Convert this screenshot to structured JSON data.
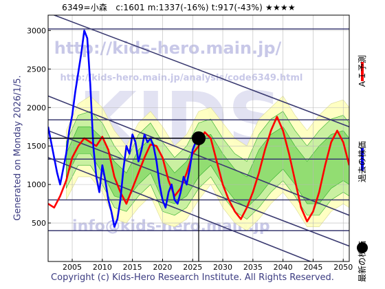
{
  "title": "6349=小森　c:1601  m:1337(-16%)  t:917(-43%)  ★★★★",
  "footer": "Copyright (c) Kids-Hero Research Institute. All Rights Reserved.",
  "side_label": "Generated on Monday 2026/1/5.",
  "watermarks": [
    "http://kids-hero.main.jp/",
    "http://kids-hero.main.jp/analysis/code6349.html",
    "KIDS",
    "info@kids-hero.main.jp"
  ],
  "legend": [
    {
      "label": "ＡＩ予測",
      "color": "#ff0000",
      "marker": "line"
    },
    {
      "label": "過去の株価",
      "color": "#0000ff",
      "marker": "line"
    },
    {
      "label": "最新の株価",
      "color": "#000000",
      "marker": "dot"
    }
  ],
  "colors": {
    "blue": "#0000ff",
    "red": "#ff0000",
    "band_outer": "#ffffc0",
    "band_mid": "#c8f0a0",
    "band_inner": "#90dc70",
    "band_line": "#22aa22",
    "trend": "#3a3a70"
  },
  "chart_data": {
    "type": "line",
    "title": "6349=小森　c:1601  m:1337(-16%)  t:917(-43%)  ★★★★",
    "xlim": [
      2001,
      2051
    ],
    "ylim": [
      0,
      3200
    ],
    "x_ticks": [
      2005,
      2010,
      2015,
      2020,
      2025,
      2030,
      2035,
      2040,
      2045,
      2050
    ],
    "y_ticks": [
      500,
      1000,
      1500,
      2000,
      2500,
      3000
    ],
    "grid": true,
    "horizontal_levels": [
      3020,
      1840,
      1600,
      1330,
      800,
      400
    ],
    "current": {
      "x": 2026.0,
      "y": 1601
    },
    "series": [
      {
        "name": "過去の株価",
        "color": "#0000ff",
        "x": [
          2001.0,
          2001.5,
          2002.0,
          2002.5,
          2003.0,
          2003.5,
          2004.0,
          2004.5,
          2005.0,
          2005.5,
          2006.0,
          2006.5,
          2007.0,
          2007.5,
          2008.0,
          2008.5,
          2009.0,
          2009.5,
          2010.0,
          2010.5,
          2011.0,
          2011.5,
          2012.0,
          2012.5,
          2013.0,
          2013.5,
          2014.0,
          2014.5,
          2015.0,
          2015.5,
          2016.0,
          2016.5,
          2017.0,
          2017.5,
          2018.0,
          2018.5,
          2019.0,
          2019.5,
          2020.0,
          2020.5,
          2021.0,
          2021.5,
          2022.0,
          2022.5,
          2023.0,
          2023.5,
          2024.0,
          2024.5,
          2025.0,
          2025.5,
          2026.0
        ],
        "y": [
          1750,
          1550,
          1350,
          1150,
          1000,
          1200,
          1400,
          1700,
          1900,
          2200,
          2450,
          2700,
          3000,
          2900,
          2300,
          1500,
          1100,
          900,
          1250,
          1050,
          800,
          650,
          450,
          550,
          800,
          1200,
          1500,
          1400,
          1650,
          1550,
          1300,
          1450,
          1650,
          1550,
          1600,
          1500,
          1300,
          1000,
          800,
          700,
          900,
          1000,
          800,
          750,
          900,
          1100,
          1000,
          1200,
          1450,
          1550,
          1601
        ]
      },
      {
        "name": "ＡＩ予測",
        "color": "#ff0000",
        "x": [
          2001.0,
          2002.0,
          2003.0,
          2004.0,
          2005.0,
          2006.0,
          2007.0,
          2008.0,
          2009.0,
          2010.0,
          2011.0,
          2012.0,
          2013.0,
          2014.0,
          2015.0,
          2016.0,
          2017.0,
          2018.0,
          2019.0,
          2020.0,
          2021.0,
          2022.0,
          2023.0,
          2024.0,
          2025.0,
          2026.0,
          2027.0,
          2028.0,
          2029.0,
          2030.0,
          2031.0,
          2032.0,
          2033.0,
          2034.0,
          2035.0,
          2036.0,
          2037.0,
          2038.0,
          2039.0,
          2040.0,
          2041.0,
          2042.0,
          2043.0,
          2044.0,
          2045.0,
          2046.0,
          2047.0,
          2048.0,
          2049.0,
          2050.0,
          2051.0
        ],
        "y": [
          750,
          700,
          850,
          1050,
          1350,
          1500,
          1600,
          1550,
          1500,
          1620,
          1450,
          1100,
          900,
          750,
          950,
          1150,
          1350,
          1520,
          1500,
          1350,
          1050,
          850,
          950,
          1150,
          1400,
          1500,
          1680,
          1600,
          1300,
          1000,
          800,
          650,
          550,
          700,
          900,
          1150,
          1450,
          1700,
          1880,
          1700,
          1400,
          1050,
          700,
          520,
          650,
          900,
          1250,
          1550,
          1700,
          1550,
          1250
        ]
      }
    ],
    "bands": [
      {
        "name": "outer",
        "x": [
          2004,
          2006,
          2008,
          2010,
          2012,
          2014,
          2016,
          2018,
          2020,
          2022,
          2024,
          2026,
          2028,
          2030,
          2032,
          2034,
          2036,
          2038,
          2040,
          2042,
          2044,
          2046,
          2048,
          2050,
          2051
        ],
        "lo": [
          800,
          1100,
          1100,
          900,
          550,
          500,
          700,
          850,
          500,
          450,
          550,
          800,
          1000,
          700,
          500,
          400,
          550,
          750,
          900,
          700,
          450,
          450,
          650,
          750,
          700
        ],
        "hi": [
          1700,
          2050,
          2150,
          2000,
          1700,
          1500,
          1800,
          1950,
          1750,
          1500,
          1650,
          1950,
          2000,
          1800,
          1600,
          1500,
          1850,
          2000,
          2150,
          1900,
          1700,
          1900,
          2050,
          2100,
          2000
        ]
      },
      {
        "name": "mid",
        "x": [
          2004,
          2006,
          2008,
          2010,
          2012,
          2014,
          2016,
          2018,
          2020,
          2022,
          2024,
          2026,
          2028,
          2030,
          2032,
          2034,
          2036,
          2038,
          2040,
          2042,
          2044,
          2046,
          2048,
          2050,
          2051
        ],
        "lo": [
          950,
          1250,
          1250,
          1000,
          700,
          650,
          850,
          1000,
          650,
          600,
          700,
          950,
          1100,
          850,
          650,
          550,
          700,
          900,
          1050,
          850,
          600,
          600,
          800,
          900,
          850
        ],
        "hi": [
          1550,
          1900,
          1950,
          1800,
          1500,
          1300,
          1650,
          1800,
          1550,
          1350,
          1500,
          1800,
          1850,
          1600,
          1400,
          1300,
          1650,
          1850,
          1950,
          1700,
          1500,
          1700,
          1850,
          1900,
          1800
        ]
      },
      {
        "name": "inner",
        "x": [
          2004,
          2006,
          2008,
          2010,
          2012,
          2014,
          2016,
          2018,
          2020,
          2022,
          2024,
          2026,
          2028,
          2030,
          2032,
          2034,
          2036,
          2038,
          2040,
          2042,
          2044,
          2046,
          2048,
          2050,
          2051
        ],
        "lo": [
          1100,
          1400,
          1400,
          1150,
          850,
          800,
          1000,
          1150,
          800,
          750,
          850,
          1100,
          1250,
          1000,
          800,
          700,
          850,
          1050,
          1200,
          1000,
          750,
          750,
          950,
          1050,
          1000
        ],
        "hi": [
          1400,
          1750,
          1750,
          1600,
          1300,
          1150,
          1450,
          1600,
          1350,
          1150,
          1300,
          1600,
          1650,
          1400,
          1200,
          1100,
          1450,
          1650,
          1750,
          1500,
          1300,
          1500,
          1650,
          1700,
          1600
        ]
      }
    ],
    "trend_lines": [
      {
        "x": [
          2001,
          2051
        ],
        "y": [
          3230,
          1750
        ]
      },
      {
        "x": [
          2001,
          2051
        ],
        "y": [
          2150,
          600
        ]
      },
      {
        "x": [
          2001,
          2051
        ],
        "y": [
          1700,
          200
        ]
      },
      {
        "x": [
          2001,
          2051
        ],
        "y": [
          1350,
          -200
        ]
      }
    ]
  }
}
